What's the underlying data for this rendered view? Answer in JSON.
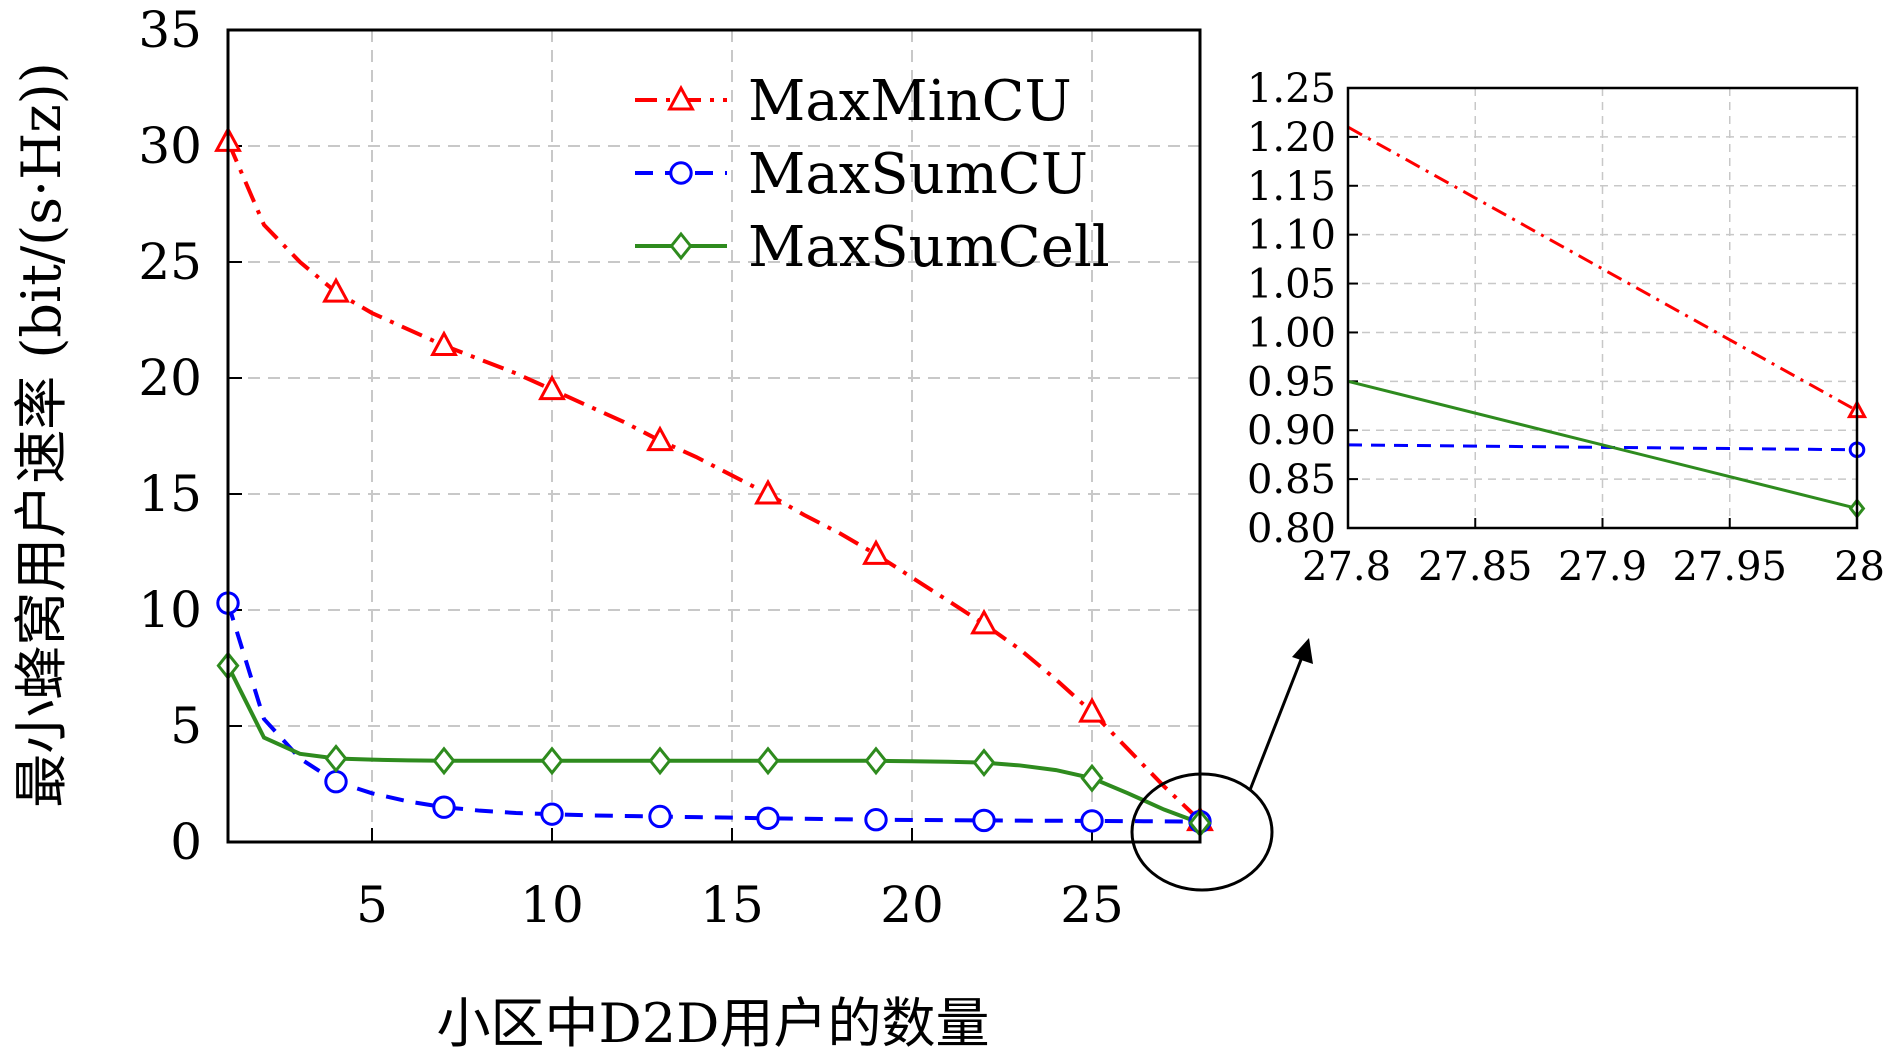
{
  "chart_data": [
    {
      "type": "line",
      "xlabel": "小区中D2D用户的数量",
      "ylabel": "最小蜂窝用户速率 (bit/(s·Hz))",
      "xlim": [
        1,
        28
      ],
      "ylim": [
        0,
        35
      ],
      "xticks": [
        5,
        10,
        15,
        20,
        25
      ],
      "yticks": [
        0,
        5,
        10,
        15,
        20,
        25,
        30,
        35
      ],
      "grid": true,
      "legend_position": "top-right",
      "x": [
        1,
        2,
        3,
        4,
        5,
        6,
        7,
        8,
        9,
        10,
        11,
        12,
        13,
        14,
        15,
        16,
        17,
        18,
        19,
        20,
        21,
        22,
        23,
        24,
        25,
        26,
        27,
        28
      ],
      "series": [
        {
          "name": "MaxMinCU",
          "color": "#ff0000",
          "line_style": "dash-dot",
          "marker": "triangle",
          "values": [
            30.2,
            26.6,
            25.0,
            23.7,
            22.8,
            22.1,
            21.4,
            20.8,
            20.2,
            19.5,
            18.8,
            18.1,
            17.3,
            16.6,
            15.8,
            15.0,
            14.1,
            13.3,
            12.4,
            11.4,
            10.4,
            9.4,
            8.3,
            7.0,
            5.6,
            4.0,
            2.4,
            0.92
          ],
          "marker_x": [
            1,
            4,
            7,
            10,
            13,
            16,
            19,
            22,
            25,
            28
          ]
        },
        {
          "name": "MaxSumCU",
          "color": "#0000ff",
          "line_style": "dashed",
          "marker": "circle",
          "values": [
            10.3,
            5.3,
            3.6,
            2.6,
            2.1,
            1.75,
            1.5,
            1.35,
            1.25,
            1.2,
            1.15,
            1.12,
            1.1,
            1.07,
            1.05,
            1.02,
            1.0,
            0.98,
            0.96,
            0.95,
            0.94,
            0.93,
            0.92,
            0.915,
            0.91,
            0.9,
            0.89,
            0.88
          ],
          "marker_x": [
            1,
            4,
            7,
            10,
            13,
            16,
            19,
            22,
            25,
            28
          ]
        },
        {
          "name": "MaxSumCell",
          "color": "#2e8b1e",
          "line_style": "solid",
          "marker": "diamond",
          "values": [
            7.6,
            4.5,
            3.8,
            3.6,
            3.55,
            3.52,
            3.5,
            3.5,
            3.5,
            3.5,
            3.5,
            3.5,
            3.5,
            3.5,
            3.5,
            3.5,
            3.5,
            3.5,
            3.5,
            3.48,
            3.46,
            3.42,
            3.3,
            3.1,
            2.75,
            2.1,
            1.4,
            0.82
          ],
          "marker_x": [
            1,
            4,
            7,
            10,
            13,
            16,
            19,
            22,
            25,
            28
          ]
        }
      ]
    },
    {
      "type": "line",
      "xlim": [
        27.8,
        28
      ],
      "ylim": [
        0.8,
        1.25
      ],
      "xticks": [
        27.8,
        27.85,
        27.9,
        27.95,
        28
      ],
      "xtick_labels": [
        "27.8",
        "27.85",
        "27.9",
        "27.95",
        "28"
      ],
      "yticks": [
        0.8,
        0.85,
        0.9,
        0.95,
        1.0,
        1.05,
        1.1,
        1.15,
        1.2,
        1.25
      ],
      "ytick_labels": [
        "0.80",
        "0.85",
        "0.90",
        "0.95",
        "1.00",
        "1.05",
        "1.10",
        "1.15",
        "1.20",
        "1.25"
      ],
      "grid": true,
      "x": [
        27.8,
        28
      ],
      "series": [
        {
          "name": "MaxMinCU",
          "color": "#ff0000",
          "line_style": "dash-dot",
          "marker": "triangle",
          "values": [
            1.21,
            0.92
          ]
        },
        {
          "name": "MaxSumCU",
          "color": "#0000ff",
          "line_style": "dashed",
          "marker": "circle",
          "values": [
            0.885,
            0.88
          ]
        },
        {
          "name": "MaxSumCell",
          "color": "#2e8b1e",
          "line_style": "solid",
          "marker": "diamond",
          "values": [
            0.95,
            0.82
          ]
        }
      ]
    }
  ]
}
